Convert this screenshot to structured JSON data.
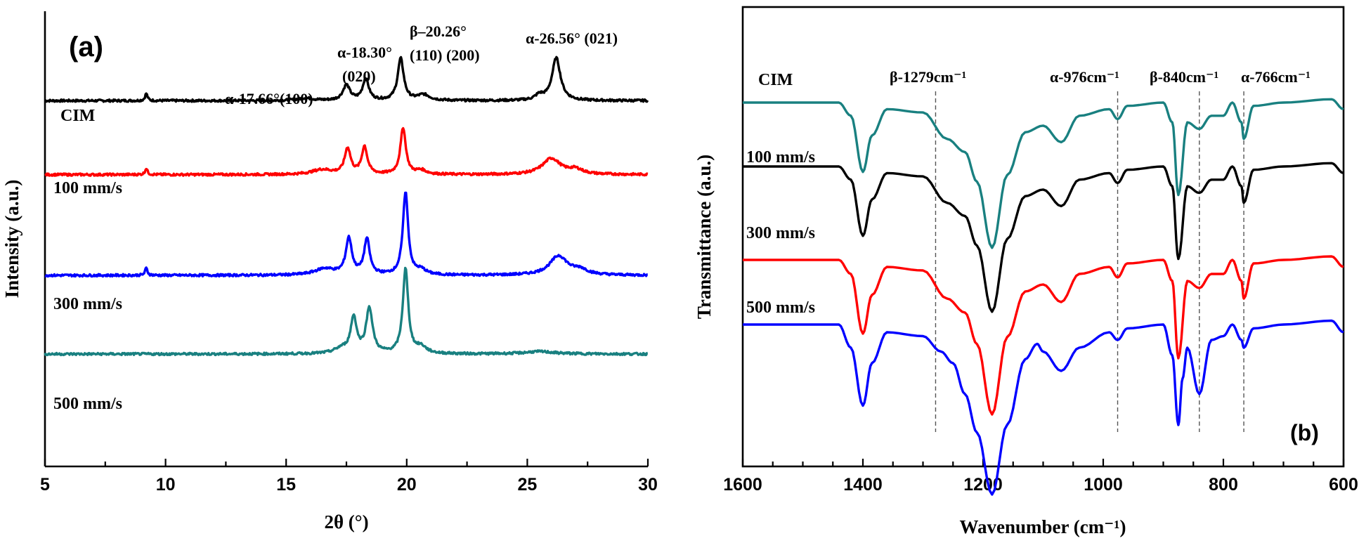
{
  "chart_data": [
    {
      "type": "line",
      "panel_label": "(a)",
      "xlabel": "2θ (°)",
      "ylabel": "Intensity (a.u.)",
      "xlim": [
        5,
        30
      ],
      "x_ticks": [
        "5",
        "10",
        "15",
        "20",
        "25",
        "30"
      ],
      "series": [
        {
          "name": "CIM",
          "color": "#000000",
          "baseline": 0.78,
          "peaks": [
            [
              9.2,
              0.09,
              0.12
            ],
            [
              15.8,
              0.03,
              0.8
            ],
            [
              17.5,
              0.19,
              0.35
            ],
            [
              18.3,
              0.27,
              0.3
            ],
            [
              19.75,
              0.52,
              0.3
            ],
            [
              20.7,
              0.07,
              0.6
            ],
            [
              25.5,
              0.06,
              0.4
            ],
            [
              26.2,
              0.53,
              0.42
            ]
          ]
        },
        {
          "name": "100 mm/s",
          "color": "#ff0000",
          "baseline": 1.72,
          "peaks": [
            [
              9.2,
              0.08,
              0.12
            ],
            [
              16.5,
              0.06,
              1.0
            ],
            [
              17.55,
              0.32,
              0.3
            ],
            [
              18.25,
              0.34,
              0.28
            ],
            [
              19.85,
              0.58,
              0.27
            ],
            [
              20.6,
              0.05,
              0.5
            ],
            [
              26.0,
              0.2,
              0.9
            ],
            [
              27.0,
              0.06,
              0.7
            ]
          ]
        },
        {
          "name": "300 mm/s",
          "color": "#0000ff",
          "baseline": 3.0,
          "peaks": [
            [
              9.2,
              0.09,
              0.12
            ],
            [
              16.6,
              0.08,
              1.0
            ],
            [
              17.6,
              0.45,
              0.3
            ],
            [
              18.35,
              0.44,
              0.28
            ],
            [
              19.95,
              1.03,
              0.26
            ],
            [
              20.6,
              0.06,
              0.5
            ],
            [
              26.3,
              0.24,
              0.9
            ],
            [
              27.2,
              0.06,
              0.7
            ]
          ]
        },
        {
          "name": "500 mm/s",
          "color": "#198080",
          "baseline": 4.0,
          "peaks": [
            [
              17.3,
              0.06,
              0.7
            ],
            [
              17.8,
              0.44,
              0.3
            ],
            [
              18.45,
              0.56,
              0.32
            ],
            [
              19.95,
              1.05,
              0.27
            ],
            [
              20.6,
              0.08,
              0.5
            ],
            [
              25.5,
              0.03,
              1.5
            ]
          ]
        }
      ],
      "annotations": [
        {
          "text": "(a)"
        },
        {
          "text": "α-17.66°(100)"
        },
        {
          "text": "α-18.30°"
        },
        {
          "text": "(020)"
        },
        {
          "text": "β–20.26°"
        },
        {
          "text": "(110) (200)"
        },
        {
          "text": "α-26.56° (021)"
        }
      ]
    },
    {
      "type": "line",
      "panel_label": "(b)",
      "xlabel": "Wavenumber (cm⁻¹)",
      "ylabel": "Transmittance (a.u.)",
      "xlim": [
        1600,
        600
      ],
      "x_ticks": [
        "1600",
        "1400",
        "1200",
        "1000",
        "800",
        "600"
      ],
      "reference_lines": [
        1279,
        976,
        840,
        766
      ],
      "annotations": [
        {
          "text": "β-1279cm⁻¹"
        },
        {
          "text": "α-976cm⁻¹"
        },
        {
          "text": "β-840cm⁻¹"
        },
        {
          "text": "α-766cm⁻¹"
        }
      ],
      "series": [
        {
          "name": "CIM",
          "color": "#198080",
          "offset": 1.0,
          "anchors": [
            [
              1600,
              1.0
            ],
            [
              1440,
              1.0
            ],
            [
              1420,
              1.2
            ],
            [
              1400,
              2.05
            ],
            [
              1385,
              1.5
            ],
            [
              1360,
              1.1
            ],
            [
              1300,
              1.15
            ],
            [
              1260,
              1.55
            ],
            [
              1230,
              1.75
            ],
            [
              1210,
              2.2
            ],
            [
              1185,
              3.2
            ],
            [
              1160,
              2.1
            ],
            [
              1130,
              1.45
            ],
            [
              1100,
              1.35
            ],
            [
              1070,
              1.6
            ],
            [
              1040,
              1.2
            ],
            [
              990,
              1.1
            ],
            [
              976,
              1.25
            ],
            [
              960,
              1.05
            ],
            [
              900,
              1.0
            ],
            [
              885,
              1.3
            ],
            [
              875,
              2.4
            ],
            [
              860,
              1.3
            ],
            [
              840,
              1.4
            ],
            [
              820,
              1.2
            ],
            [
              800,
              1.2
            ],
            [
              785,
              1.0
            ],
            [
              770,
              1.3
            ],
            [
              766,
              1.55
            ],
            [
              750,
              1.05
            ],
            [
              700,
              1.0
            ],
            [
              620,
              0.95
            ],
            [
              600,
              1.1
            ]
          ]
        },
        {
          "name": "100 mm/s",
          "color": "#000000",
          "offset": 1.0,
          "anchors": [
            [
              1600,
              1.0
            ],
            [
              1440,
              1.0
            ],
            [
              1420,
              1.2
            ],
            [
              1400,
              2.05
            ],
            [
              1385,
              1.5
            ],
            [
              1360,
              1.1
            ],
            [
              1300,
              1.15
            ],
            [
              1260,
              1.55
            ],
            [
              1230,
              1.75
            ],
            [
              1210,
              2.2
            ],
            [
              1185,
              3.2
            ],
            [
              1160,
              2.1
            ],
            [
              1130,
              1.45
            ],
            [
              1100,
              1.35
            ],
            [
              1070,
              1.6
            ],
            [
              1040,
              1.2
            ],
            [
              990,
              1.1
            ],
            [
              976,
              1.25
            ],
            [
              960,
              1.05
            ],
            [
              900,
              1.0
            ],
            [
              885,
              1.3
            ],
            [
              875,
              2.4
            ],
            [
              860,
              1.3
            ],
            [
              840,
              1.4
            ],
            [
              820,
              1.2
            ],
            [
              800,
              1.2
            ],
            [
              785,
              1.0
            ],
            [
              770,
              1.3
            ],
            [
              766,
              1.55
            ],
            [
              750,
              1.05
            ],
            [
              700,
              1.0
            ],
            [
              620,
              0.95
            ],
            [
              600,
              1.1
            ]
          ]
        },
        {
          "name": "300 mm/s",
          "color": "#ff0000",
          "offset": 1.0,
          "anchors": [
            [
              1600,
              1.0
            ],
            [
              1440,
              1.0
            ],
            [
              1420,
              1.2
            ],
            [
              1400,
              2.05
            ],
            [
              1385,
              1.5
            ],
            [
              1360,
              1.1
            ],
            [
              1300,
              1.15
            ],
            [
              1260,
              1.55
            ],
            [
              1230,
              1.75
            ],
            [
              1210,
              2.2
            ],
            [
              1185,
              3.2
            ],
            [
              1160,
              2.1
            ],
            [
              1130,
              1.45
            ],
            [
              1100,
              1.35
            ],
            [
              1070,
              1.6
            ],
            [
              1040,
              1.2
            ],
            [
              990,
              1.1
            ],
            [
              976,
              1.25
            ],
            [
              960,
              1.05
            ],
            [
              900,
              1.0
            ],
            [
              885,
              1.3
            ],
            [
              875,
              2.4
            ],
            [
              860,
              1.3
            ],
            [
              840,
              1.4
            ],
            [
              820,
              1.2
            ],
            [
              800,
              1.2
            ],
            [
              785,
              1.0
            ],
            [
              770,
              1.3
            ],
            [
              766,
              1.55
            ],
            [
              750,
              1.05
            ],
            [
              700,
              1.0
            ],
            [
              620,
              0.95
            ],
            [
              600,
              1.1
            ]
          ]
        },
        {
          "name": "500 mm/s",
          "color": "#0000ff",
          "offset": 1.0,
          "anchors": [
            [
              1600,
              1.0
            ],
            [
              1440,
              1.0
            ],
            [
              1420,
              1.3
            ],
            [
              1400,
              2.05
            ],
            [
              1385,
              1.5
            ],
            [
              1360,
              1.1
            ],
            [
              1300,
              1.15
            ],
            [
              1270,
              1.35
            ],
            [
              1250,
              1.5
            ],
            [
              1230,
              1.9
            ],
            [
              1210,
              2.4
            ],
            [
              1185,
              3.2
            ],
            [
              1160,
              2.3
            ],
            [
              1130,
              1.45
            ],
            [
              1110,
              1.25
            ],
            [
              1100,
              1.35
            ],
            [
              1070,
              1.6
            ],
            [
              1040,
              1.3
            ],
            [
              990,
              1.1
            ],
            [
              976,
              1.2
            ],
            [
              960,
              1.05
            ],
            [
              900,
              1.0
            ],
            [
              885,
              1.4
            ],
            [
              875,
              2.3
            ],
            [
              868,
              1.7
            ],
            [
              860,
              1.3
            ],
            [
              840,
              1.9
            ],
            [
              820,
              1.2
            ],
            [
              800,
              1.15
            ],
            [
              785,
              1.0
            ],
            [
              770,
              1.2
            ],
            [
              766,
              1.3
            ],
            [
              750,
              1.05
            ],
            [
              700,
              1.0
            ],
            [
              620,
              0.95
            ],
            [
              600,
              1.1
            ]
          ]
        }
      ]
    }
  ]
}
